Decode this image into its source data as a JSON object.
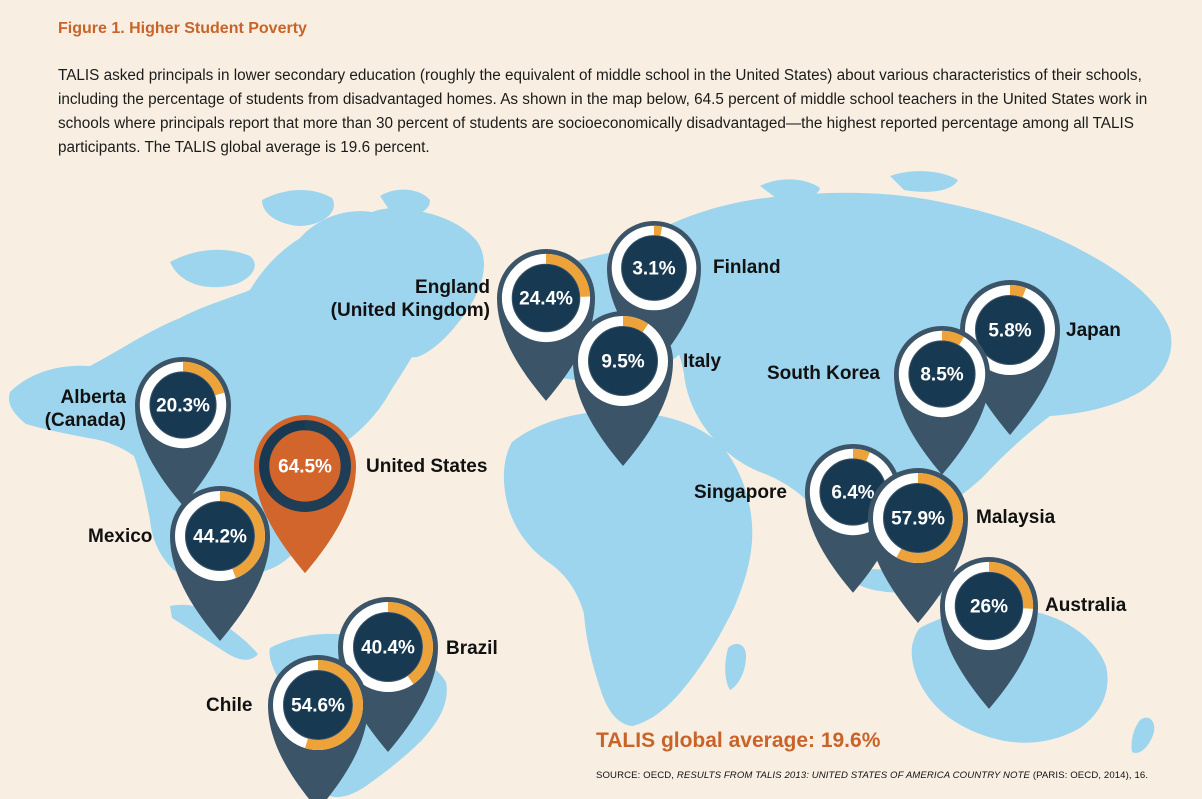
{
  "title": "Figure 1. Higher Student Poverty",
  "intro": "TALIS asked principals in lower secondary education (roughly the equivalent of middle school in the United States) about various characteristics of their schools, including the percentage of students from disadvantaged homes. As shown in the map below, 64.5 percent of middle school teachers in the United States work in schools where principals report that more than 30 percent of students are socioeconomically disadvantaged—the highest reported percentage among all TALIS participants. The TALIS global average is 19.6 percent.",
  "colors": {
    "background": "#f8efe2",
    "land": "#9dd5ee",
    "pin": "#3b5468",
    "pin_highlight": "#d2652b",
    "disc": "#173a52",
    "ring_fill": "#eda33a",
    "ring_bg": "#ffffff",
    "title": "#c8642a"
  },
  "pins": [
    {
      "id": "alberta",
      "label_lines": [
        "Alberta",
        "(Canada)"
      ],
      "value": 20.3,
      "display": "20.3%",
      "highlight": false
    },
    {
      "id": "united-states",
      "label_lines": [
        "United States"
      ],
      "value": 64.5,
      "display": "64.5%",
      "highlight": true
    },
    {
      "id": "mexico",
      "label_lines": [
        "Mexico"
      ],
      "value": 44.2,
      "display": "44.2%",
      "highlight": false
    },
    {
      "id": "brazil",
      "label_lines": [
        "Brazil"
      ],
      "value": 40.4,
      "display": "40.4%",
      "highlight": false
    },
    {
      "id": "chile",
      "label_lines": [
        "Chile"
      ],
      "value": 54.6,
      "display": "54.6%",
      "highlight": false
    },
    {
      "id": "england",
      "label_lines": [
        "England",
        "(United Kingdom)"
      ],
      "value": 24.4,
      "display": "24.4%",
      "highlight": false
    },
    {
      "id": "finland",
      "label_lines": [
        "Finland"
      ],
      "value": 3.1,
      "display": "3.1%",
      "highlight": false
    },
    {
      "id": "italy",
      "label_lines": [
        "Italy"
      ],
      "value": 9.5,
      "display": "9.5%",
      "highlight": false
    },
    {
      "id": "japan",
      "label_lines": [
        "Japan"
      ],
      "value": 5.8,
      "display": "5.8%",
      "highlight": false
    },
    {
      "id": "south-korea",
      "label_lines": [
        "South Korea"
      ],
      "value": 8.5,
      "display": "8.5%",
      "highlight": false
    },
    {
      "id": "singapore",
      "label_lines": [
        "Singapore"
      ],
      "value": 6.4,
      "display": "6.4%",
      "highlight": false
    },
    {
      "id": "malaysia",
      "label_lines": [
        "Malaysia"
      ],
      "value": 57.9,
      "display": "57.9%",
      "highlight": false
    },
    {
      "id": "australia",
      "label_lines": [
        "Australia"
      ],
      "value": 26,
      "display": "26%",
      "highlight": false
    }
  ],
  "global_average": "TALIS global average: 19.6%",
  "source": {
    "prefix": "SOURCE: OECD, ",
    "title": "RESULTS FROM TALIS 2013: UNITED STATES OF AMERICA COUNTRY NOTE",
    "suffix": " (PARIS: OECD, 2014), 16."
  }
}
